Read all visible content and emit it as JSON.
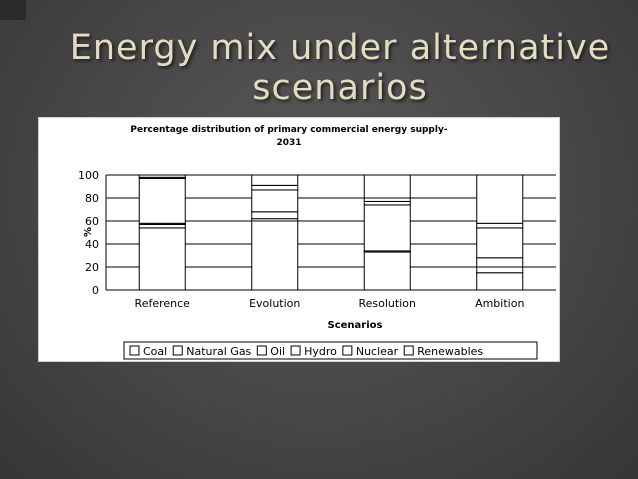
{
  "slide": {
    "title_line1": "Energy mix under alternative",
    "title_line2": "scenarios"
  },
  "chart_data": {
    "type": "bar",
    "stacked": true,
    "title": "Percentage distribution of primary commercial energy supply-2031",
    "title_line1": "Percentage distribution of primary commercial energy supply-",
    "title_line2": "2031",
    "xlabel": "Scenarios",
    "ylabel": "%",
    "ylim": [
      0,
      100
    ],
    "yticks": [
      0,
      20,
      40,
      60,
      80,
      100
    ],
    "grid": true,
    "legend_position": "bottom",
    "categories": [
      "Reference",
      "Evolution",
      "Resolution",
      "Ambition"
    ],
    "series": [
      {
        "name": "Coal",
        "values": [
          54,
          60,
          33,
          15
        ]
      },
      {
        "name": "Natural Gas",
        "values": [
          3,
          2,
          1,
          5
        ]
      },
      {
        "name": "Oil",
        "values": [
          1,
          6,
          40,
          8
        ]
      },
      {
        "name": "Hydro",
        "values": [
          39,
          19,
          3,
          26
        ]
      },
      {
        "name": "Nuclear",
        "values": [
          1,
          4,
          3,
          4
        ]
      },
      {
        "name": "Renewables",
        "values": [
          2,
          9,
          20,
          42
        ]
      }
    ]
  }
}
